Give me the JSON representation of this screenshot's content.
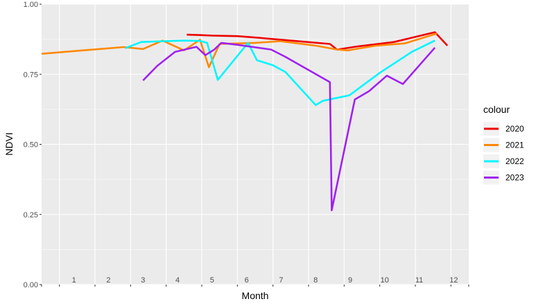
{
  "chart_data": {
    "type": "line",
    "xlabel": "Month",
    "ylabel": "NDVI",
    "ylim": [
      0,
      1
    ],
    "xlim": [
      0.5,
      12.5
    ],
    "y_ticks": [
      "0.00",
      "0.25",
      "0.50",
      "0.75",
      "1.00"
    ],
    "x_tick_labels": [
      "1",
      "2",
      "3",
      "4",
      "5",
      "6",
      "7",
      "8",
      "9",
      "10",
      "11",
      "12"
    ],
    "legend_title": "colour",
    "legend_position": "right",
    "grid": true,
    "series": [
      {
        "name": "2020",
        "color": "#ee0000",
        "x": [
          4.58,
          4.9,
          5.3,
          6.0,
          6.6,
          7.6,
          8.6,
          8.8,
          9.3,
          10.4,
          11.55,
          11.9
        ],
        "y": [
          0.891,
          0.89,
          0.888,
          0.886,
          0.88,
          0.869,
          0.858,
          0.838,
          0.848,
          0.865,
          0.9,
          0.852
        ]
      },
      {
        "name": "2021",
        "color": "#ff8800",
        "x": [
          0.5,
          2.8,
          3.35,
          3.9,
          4.5,
          4.95,
          5.2,
          5.5,
          6.5,
          7.2,
          8.2,
          8.8,
          9.1,
          9.9,
          10.7,
          11.6
        ],
        "y": [
          0.823,
          0.847,
          0.84,
          0.87,
          0.835,
          0.873,
          0.775,
          0.858,
          0.862,
          0.868,
          0.852,
          0.838,
          0.835,
          0.852,
          0.86,
          0.895
        ]
      },
      {
        "name": "2022",
        "color": "#00f5ff",
        "x": [
          2.85,
          3.3,
          3.95,
          4.5,
          4.95,
          5.15,
          5.45,
          6.3,
          6.55,
          7.0,
          7.35,
          8.2,
          8.4,
          9.15,
          10.0,
          10.9,
          11.55
        ],
        "y": [
          0.843,
          0.865,
          0.868,
          0.87,
          0.869,
          0.862,
          0.73,
          0.862,
          0.8,
          0.782,
          0.758,
          0.64,
          0.655,
          0.675,
          0.755,
          0.83,
          0.87
        ]
      },
      {
        "name": "2023",
        "color": "#a020f0",
        "x": [
          3.35,
          3.75,
          4.25,
          4.85,
          5.1,
          5.35,
          5.55,
          6.0,
          6.95,
          7.35,
          8.6,
          8.65,
          9.3,
          9.7,
          10.2,
          10.65,
          11.55
        ],
        "y": [
          0.728,
          0.78,
          0.83,
          0.848,
          0.818,
          0.838,
          0.862,
          0.855,
          0.838,
          0.812,
          0.722,
          0.265,
          0.66,
          0.69,
          0.745,
          0.715,
          0.845
        ]
      }
    ]
  }
}
